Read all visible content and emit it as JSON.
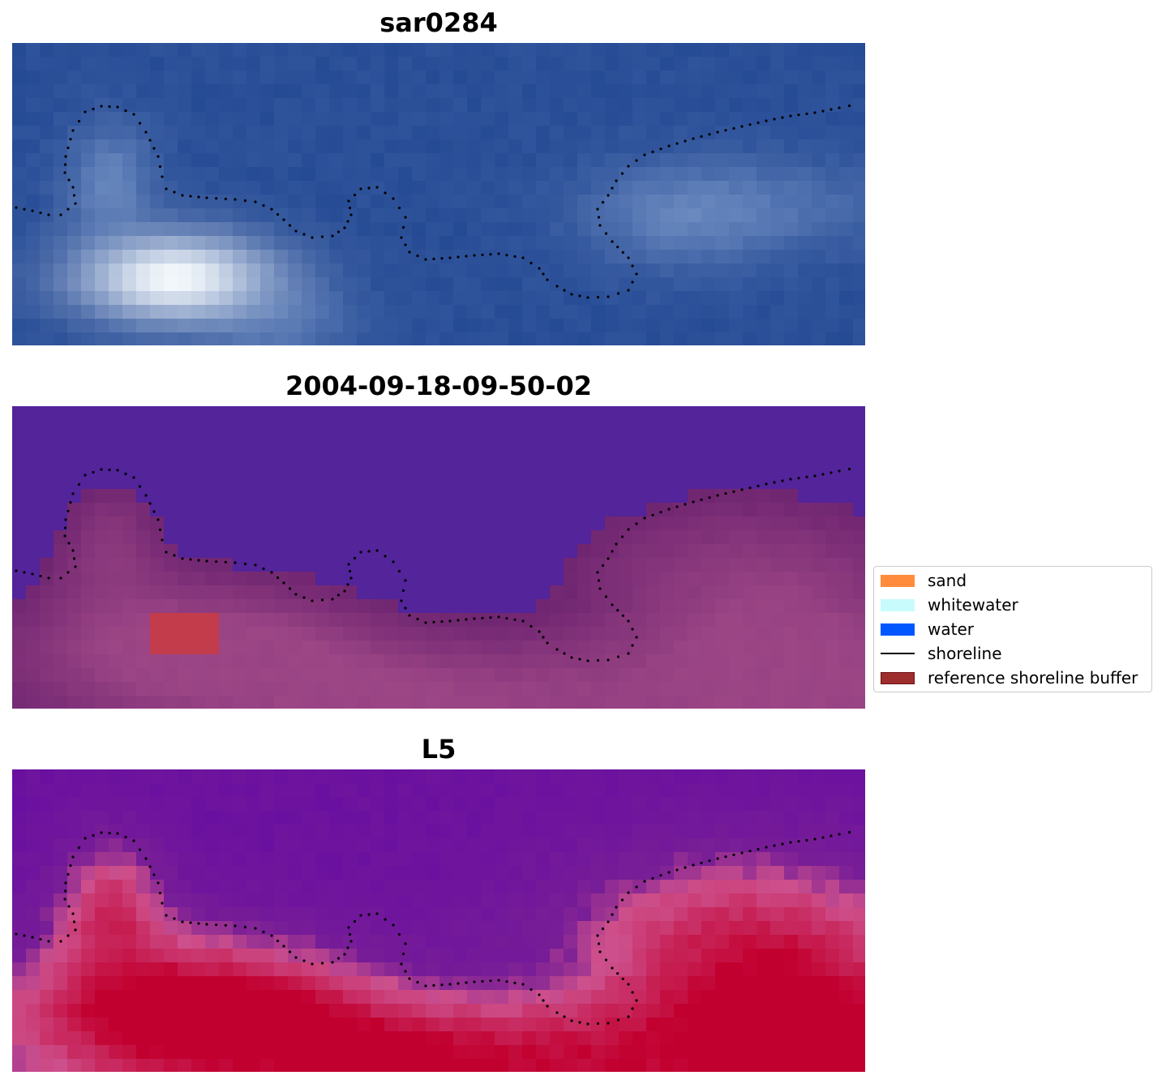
{
  "panels": [
    {
      "title": "sar0284",
      "style": "rgb"
    },
    {
      "title": "2004-09-18-09-50-02",
      "style": "class"
    },
    {
      "title": "L5",
      "style": "prob"
    }
  ],
  "legend": {
    "items": [
      {
        "label": "sand",
        "type": "patch",
        "color": "#ff8c3c"
      },
      {
        "label": "whitewater",
        "type": "patch",
        "color": "#c8fcfc"
      },
      {
        "label": "water",
        "type": "patch",
        "color": "#0057ff"
      },
      {
        "label": "shoreline",
        "type": "line",
        "color": "#000000"
      },
      {
        "label": "reference shoreline buffer",
        "type": "patch",
        "color": "#9e2e2e"
      }
    ]
  },
  "colors": {
    "rgb_base": "#264b95",
    "class_water": "#53249a",
    "class_land": "#6e2470",
    "class_buffer": "#c23c4c",
    "prob_low": "#6a10a0",
    "prob_high": "#c2002f"
  }
}
